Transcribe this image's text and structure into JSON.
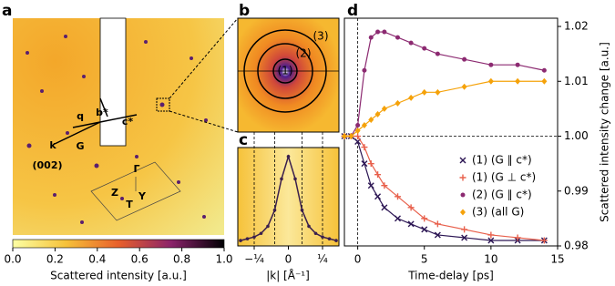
{
  "chart_data": [
    {
      "type": "image",
      "panel": "a",
      "colorbar_label": "Scattered intensity [a.u.]",
      "colorbar_lim": [
        0,
        1
      ],
      "colorbar_ticks": [
        {
          "value": 0,
          "label": "0.0"
        },
        0.2,
        0.4,
        0.6,
        0.8,
        {
          "value": 1,
          "label": "1.0"
        }
      ],
      "annotations": [
        "b*",
        "c*",
        "q",
        "k",
        "G",
        "(002)",
        "Γ",
        "Z",
        "T",
        "Y"
      ]
    },
    {
      "type": "image",
      "panel": "b",
      "annotations": [
        "(1)",
        "(2)",
        "(3)"
      ]
    },
    {
      "type": "line",
      "panel": "c",
      "xlabel": "|k| [Å⁻¹]",
      "x": [
        -0.35,
        -0.3,
        -0.25,
        -0.2,
        -0.15,
        -0.1,
        -0.05,
        0,
        0.05,
        0.1,
        0.15,
        0.2,
        0.25,
        0.3,
        0.35
      ],
      "values": [
        0.06,
        0.08,
        0.1,
        0.14,
        0.22,
        0.4,
        0.75,
        1.0,
        0.75,
        0.4,
        0.22,
        0.14,
        0.1,
        0.08,
        0.06
      ],
      "color": "#3a1f4d",
      "xlim": [
        -0.37,
        0.37
      ],
      "ylim": [
        0,
        1.1
      ],
      "xticks": [
        {
          "value": -0.25,
          "label": "−¼"
        },
        0,
        {
          "value": 0.25,
          "label": "¼"
        }
      ],
      "guides": [
        -0.25,
        -0.1,
        0.1,
        0.25
      ]
    },
    {
      "type": "scatter",
      "panel": "d",
      "xlabel": "Time-delay [ps]",
      "ylabel": "Scattered intensity change [a.u.]",
      "x": [
        -1,
        -0.5,
        0,
        0.5,
        1,
        1.5,
        2,
        3,
        4,
        5,
        6,
        8,
        10,
        12,
        14
      ],
      "series": [
        {
          "name": "(1) (G ∥ c*)",
          "color": "#2c1654",
          "marker": "x",
          "values": [
            1.0,
            1.0,
            0.999,
            0.995,
            0.991,
            0.989,
            0.987,
            0.985,
            0.984,
            0.983,
            0.982,
            0.9815,
            0.981,
            0.981,
            0.981
          ]
        },
        {
          "name": "(1) (G ⊥ c*)",
          "color": "#e8604c",
          "marker": "+",
          "values": [
            1.0,
            1.0,
            1.0,
            0.998,
            0.995,
            0.993,
            0.991,
            0.989,
            0.987,
            0.985,
            0.984,
            0.983,
            0.982,
            0.9815,
            0.981
          ]
        },
        {
          "name": "(2) (G ∥ c*)",
          "color": "#8c2a71",
          "marker": "o",
          "values": [
            1.0,
            1.0,
            1.002,
            1.012,
            1.018,
            1.019,
            1.019,
            1.018,
            1.017,
            1.016,
            1.015,
            1.014,
            1.013,
            1.013,
            1.012
          ]
        },
        {
          "name": "(3) (all G)",
          "color": "#f5a20a",
          "marker": "D",
          "values": [
            1.0,
            1.0,
            1.001,
            1.002,
            1.003,
            1.004,
            1.005,
            1.006,
            1.007,
            1.008,
            1.008,
            1.009,
            1.01,
            1.01,
            1.01
          ]
        }
      ],
      "xlim": [
        -1,
        15
      ],
      "ylim": [
        0.98,
        1.0215
      ],
      "xticks": [
        0,
        5,
        10,
        15
      ],
      "yticks": [
        {
          "value": 0.98,
          "label": "0.98"
        },
        {
          "value": 0.99,
          "label": "0.99"
        },
        {
          "value": 1,
          "label": "1.00"
        },
        {
          "value": 1.01,
          "label": "1.01"
        },
        {
          "value": 1.02,
          "label": "1.02"
        }
      ]
    }
  ]
}
